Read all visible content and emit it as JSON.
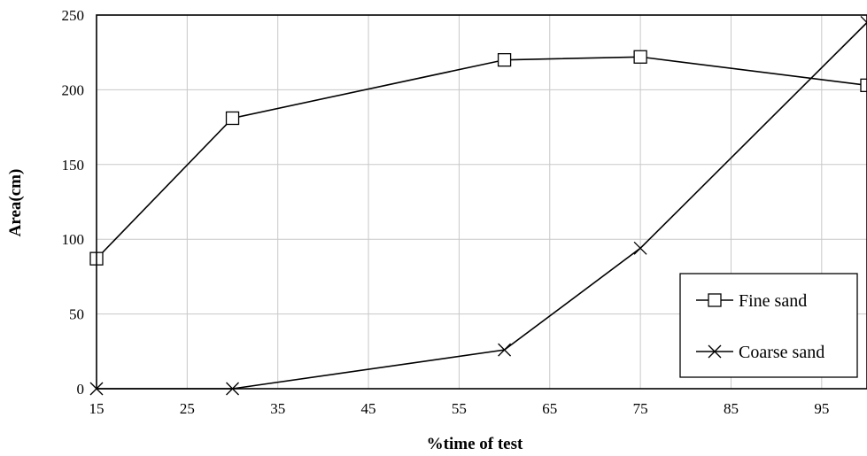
{
  "chart_data": {
    "type": "line",
    "xlabel": "%time of test",
    "ylabel": "Area(cm)",
    "xlim": [
      15,
      100
    ],
    "ylim": [
      0,
      250
    ],
    "xticks": [
      15,
      25,
      35,
      45,
      55,
      65,
      75,
      85,
      95
    ],
    "yticks": [
      0,
      50,
      100,
      150,
      200,
      250
    ],
    "grid": true,
    "legend_position": "bottom-right",
    "series": [
      {
        "name": "Fine sand",
        "marker": "square",
        "x": [
          15,
          30,
          60,
          75,
          100
        ],
        "y": [
          87,
          181,
          220,
          222,
          203
        ]
      },
      {
        "name": "Coarse sand",
        "marker": "x",
        "x": [
          15,
          30,
          60,
          75,
          100
        ],
        "y": [
          0,
          0,
          26,
          94,
          245
        ]
      }
    ]
  }
}
